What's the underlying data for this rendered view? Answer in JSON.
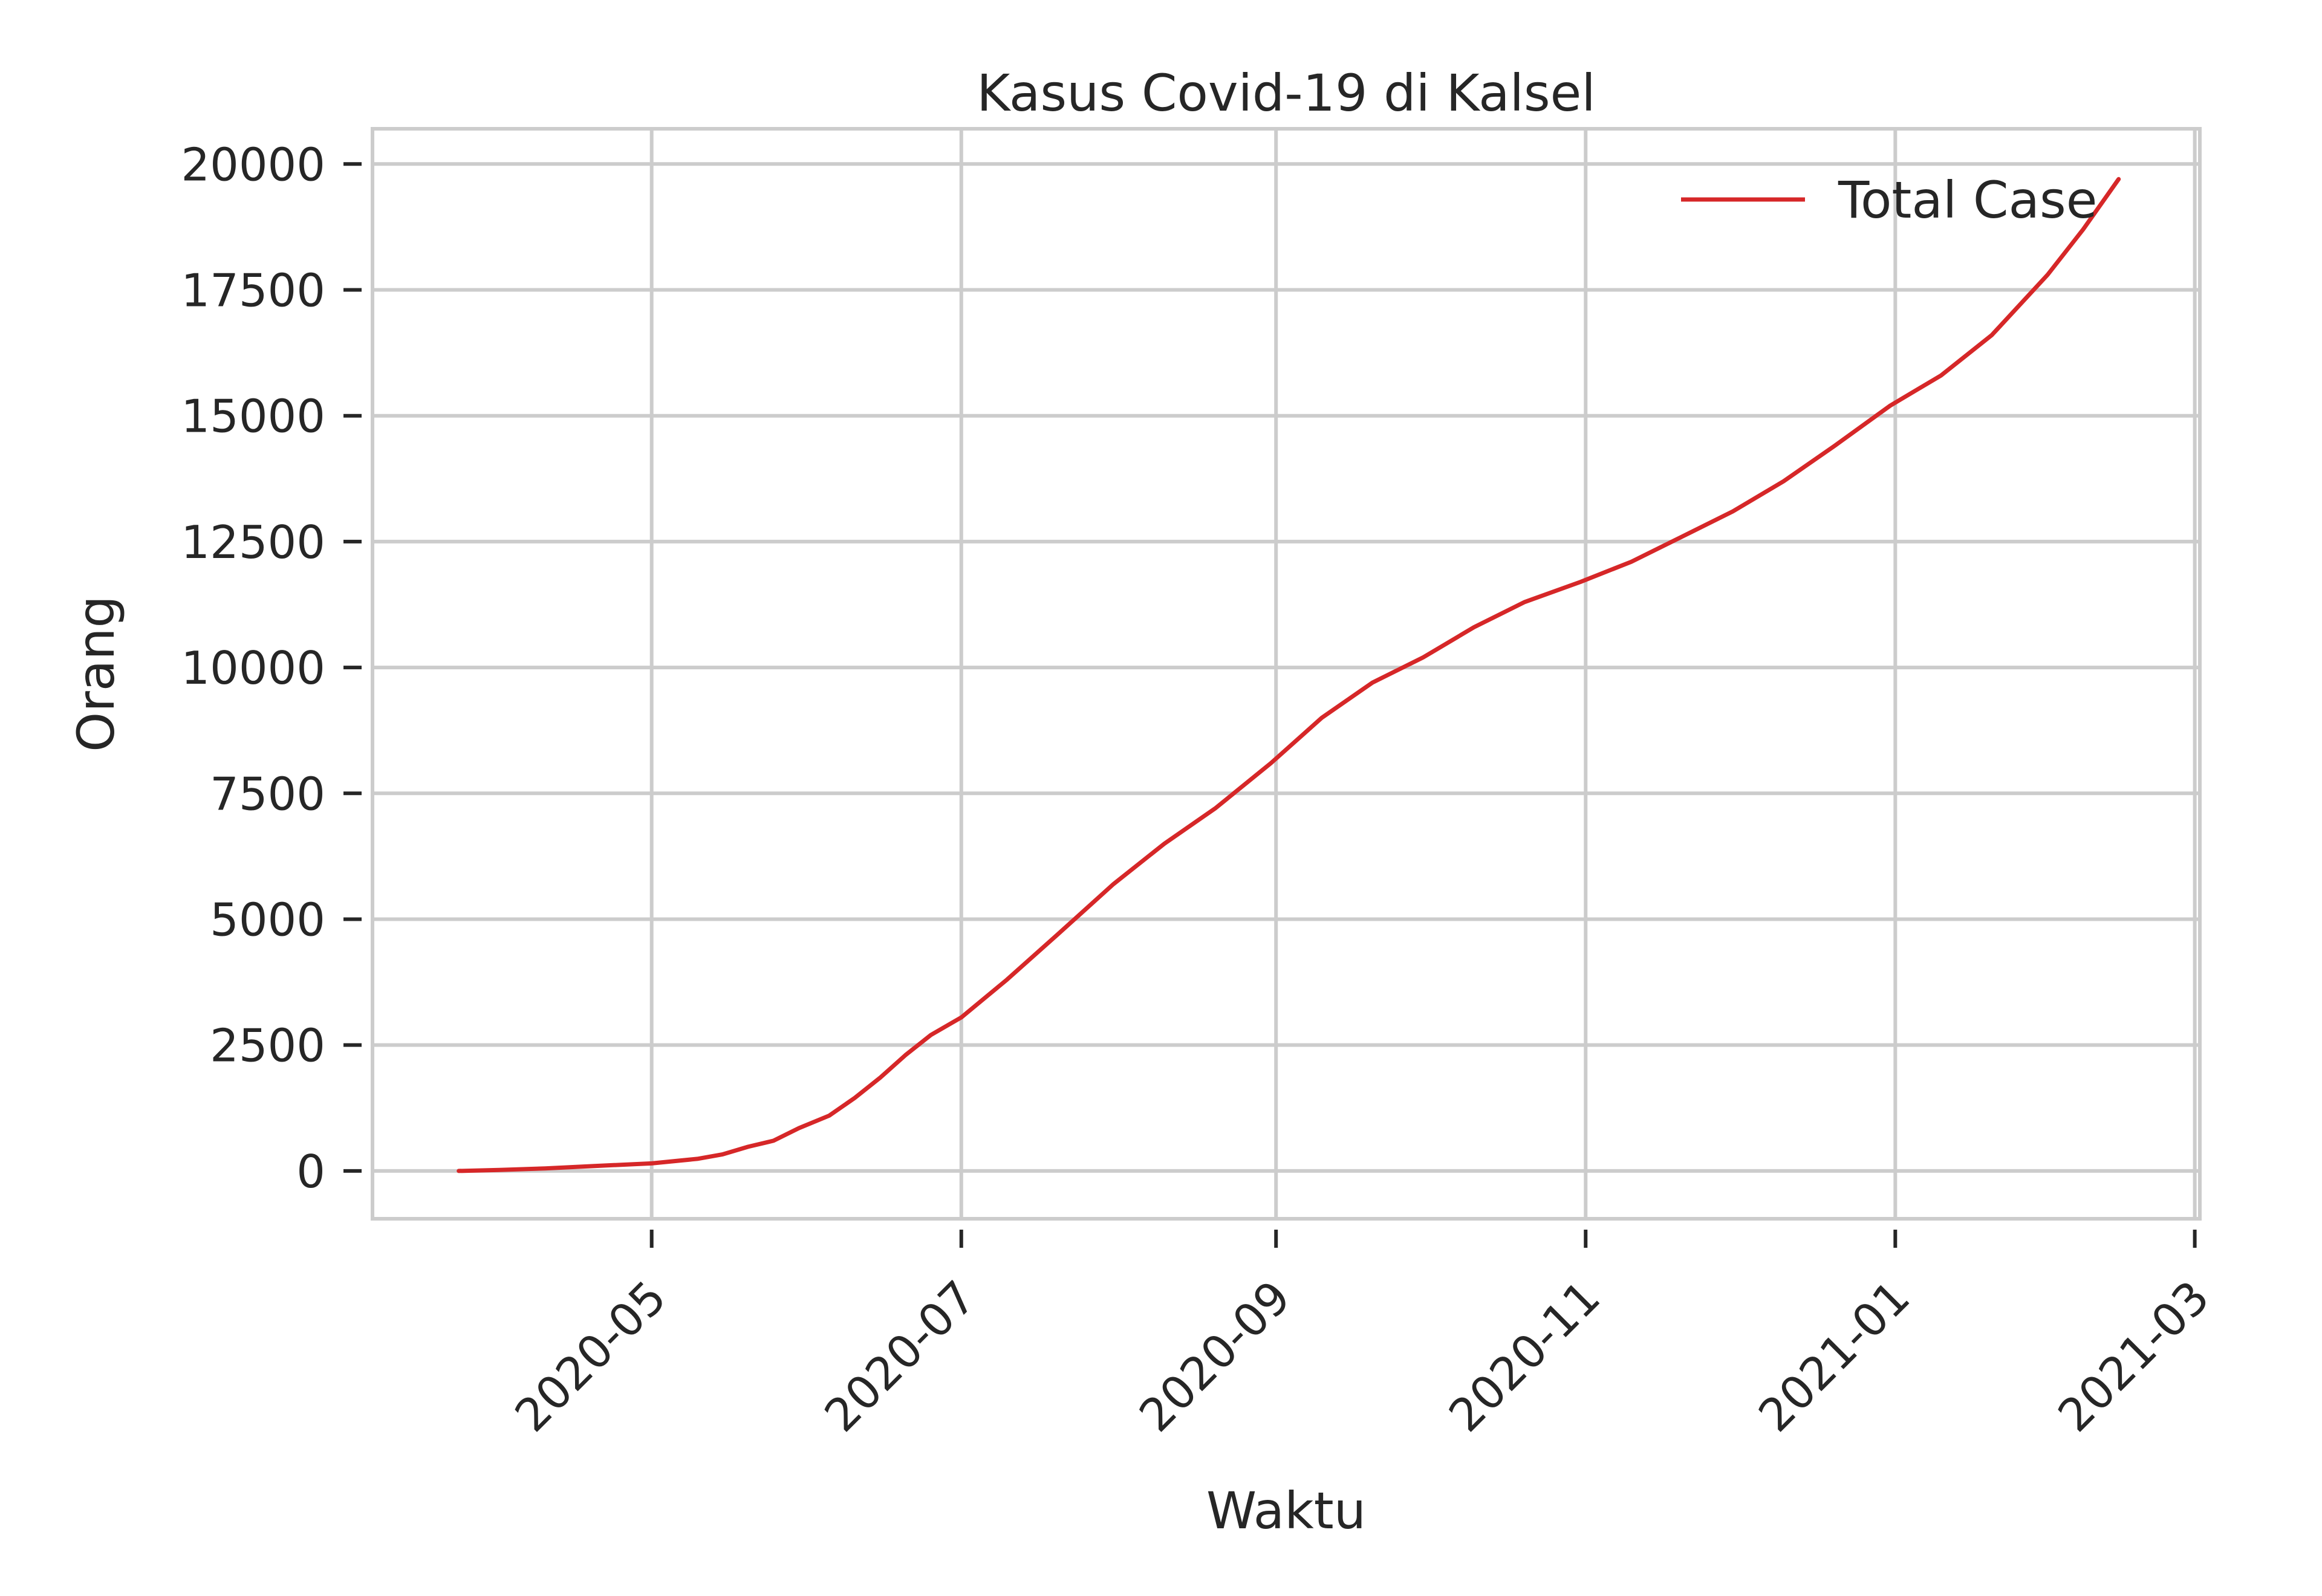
{
  "chart_data": {
    "type": "line",
    "title": "Kasus Covid-19 di Kalsel",
    "xlabel": "Waktu",
    "ylabel": "Orang",
    "x_tick_labels": [
      "2020-05",
      "2020-07",
      "2020-09",
      "2020-11",
      "2021-01",
      "2021-03"
    ],
    "x_ticks": [
      "2020-05-01",
      "2020-07-01",
      "2020-09-01",
      "2020-11-01",
      "2021-01-01",
      "2021-03-01"
    ],
    "xlim": [
      "2020-03-07",
      "2021-03-02"
    ],
    "y_ticks": [
      0,
      2500,
      5000,
      7500,
      10000,
      12500,
      15000,
      17500,
      20000
    ],
    "ylim": [
      -950,
      20700
    ],
    "grid": true,
    "legend_position": "top-right",
    "colors": {
      "line": "#d62728",
      "grid": "#cccccc",
      "text": "#262626"
    },
    "series": [
      {
        "name": "Total Case",
        "x": [
          "2020-03-24",
          "2020-04-01",
          "2020-04-10",
          "2020-04-20",
          "2020-05-01",
          "2020-05-10",
          "2020-05-15",
          "2020-05-20",
          "2020-05-25",
          "2020-05-30",
          "2020-06-05",
          "2020-06-10",
          "2020-06-15",
          "2020-06-20",
          "2020-06-25",
          "2020-07-01",
          "2020-07-10",
          "2020-07-20",
          "2020-07-31",
          "2020-08-10",
          "2020-08-20",
          "2020-08-31",
          "2020-09-10",
          "2020-09-20",
          "2020-09-30",
          "2020-10-10",
          "2020-10-20",
          "2020-10-31",
          "2020-11-10",
          "2020-11-20",
          "2020-11-30",
          "2020-12-10",
          "2020-12-20",
          "2020-12-31",
          "2021-01-10",
          "2021-01-20",
          "2021-01-31",
          "2021-02-07",
          "2021-02-14"
        ],
        "y": [
          0,
          20,
          50,
          100,
          150,
          240,
          330,
          480,
          600,
          850,
          1100,
          1450,
          1850,
          2300,
          2700,
          3050,
          3800,
          4700,
          5700,
          6500,
          7200,
          8100,
          9000,
          9700,
          10200,
          10800,
          11300,
          11700,
          12100,
          12600,
          13100,
          13700,
          14400,
          15200,
          15800,
          16600,
          17800,
          18700,
          19700
        ]
      }
    ]
  }
}
